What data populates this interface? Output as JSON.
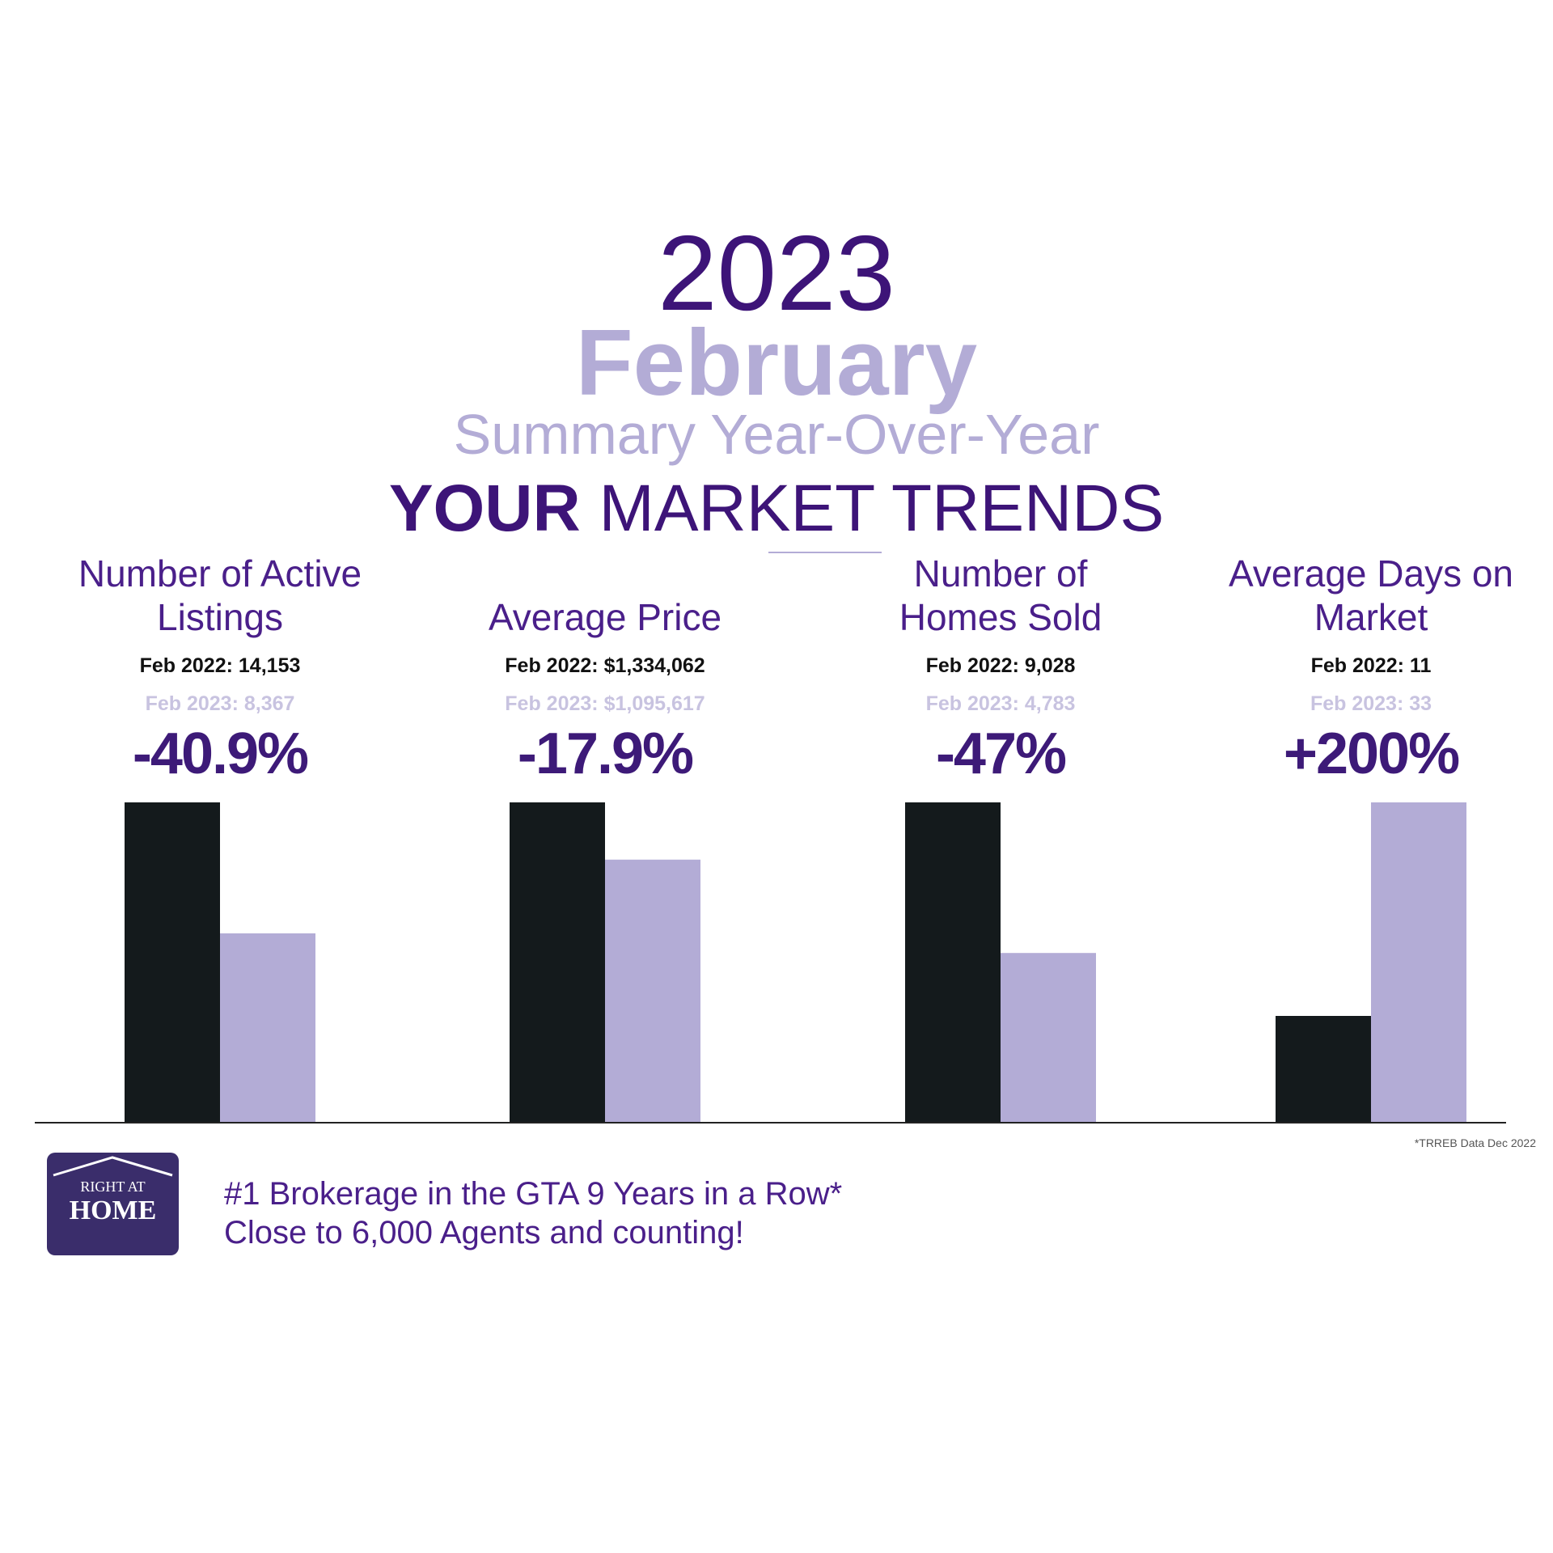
{
  "header": {
    "year": "2023",
    "month": "February",
    "subtitle": "Summary Year-Over-Year",
    "title_bold": "YOUR",
    "title_rest": "MARKET TRENDS"
  },
  "chart_data": [
    {
      "type": "bar",
      "title": "Number of Active Listings",
      "categories": [
        "Feb 2022:",
        "Feb 2023:"
      ],
      "values": [
        14153,
        8367
      ],
      "value_labels": [
        "14,153",
        "8,367"
      ],
      "annotation": "-40.9%",
      "colors": [
        "#141a1c",
        "#b3acd6"
      ]
    },
    {
      "type": "bar",
      "title": "Average Price",
      "categories": [
        "Feb 2022:",
        "Feb 2023:"
      ],
      "values": [
        1334062,
        1095617
      ],
      "value_labels": [
        "$1,334,062",
        "$1,095,617"
      ],
      "annotation": "-17.9%",
      "colors": [
        "#141a1c",
        "#b3acd6"
      ]
    },
    {
      "type": "bar",
      "title": "Number of Homes Sold",
      "categories": [
        "Feb 2022:",
        "Feb 2023:"
      ],
      "values": [
        9028,
        4783
      ],
      "value_labels": [
        "9,028",
        "4,783"
      ],
      "annotation": "-47%",
      "colors": [
        "#141a1c",
        "#b3acd6"
      ]
    },
    {
      "type": "bar",
      "title": "Average Days on Market",
      "categories": [
        "Feb 2022:",
        "Feb 2023:"
      ],
      "values": [
        11,
        33
      ],
      "annotation": "+200%",
      "colors": [
        "#141a1c",
        "#b3acd6"
      ]
    }
  ],
  "footnote": "*TRREB Data Dec 2022",
  "logo": {
    "top": "RIGHT AT",
    "bottom": "HOME"
  },
  "tagline": [
    "#1 Brokerage in the GTA 9 Years in a Row*",
    "Close to 6,000 Agents and counting!"
  ]
}
